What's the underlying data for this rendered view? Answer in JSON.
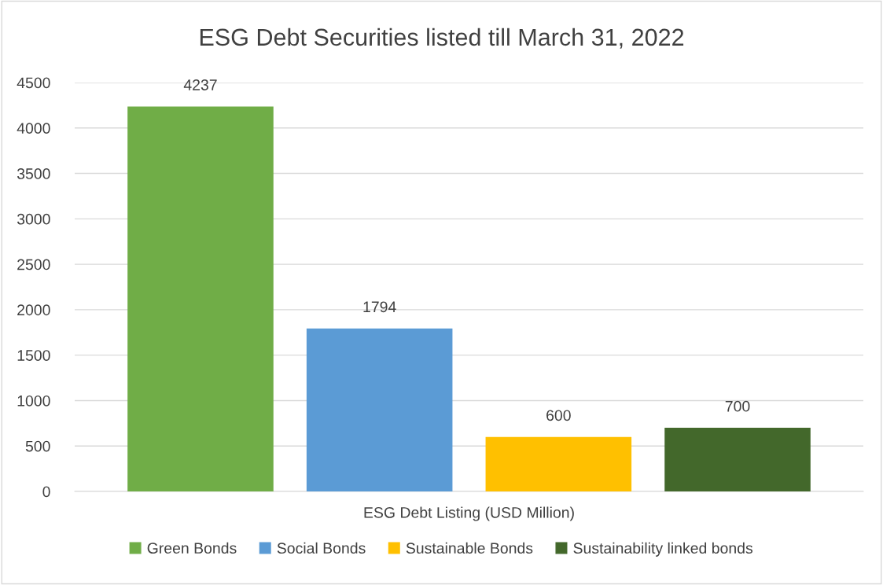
{
  "chart_data": {
    "type": "bar",
    "title": "ESG Debt Securities listed till March 31, 2022",
    "categories": [
      "ESG Debt Listing (USD Million)"
    ],
    "series": [
      {
        "name": "Green Bonds",
        "color": "#70ad47",
        "values": [
          4237
        ]
      },
      {
        "name": "Social Bonds",
        "color": "#5b9bd5",
        "values": [
          1794
        ]
      },
      {
        "name": "Sustainable Bonds",
        "color": "#ffc000",
        "values": [
          600
        ]
      },
      {
        "name": "Sustainability linked bonds",
        "color": "#43682b",
        "values": [
          700
        ]
      }
    ],
    "ylim": [
      0,
      4500
    ],
    "yticks": [
      0,
      500,
      1000,
      1500,
      2000,
      2500,
      3000,
      3500,
      4000,
      4500
    ],
    "grid": "y",
    "legend": "bottom",
    "data_labels": true
  }
}
